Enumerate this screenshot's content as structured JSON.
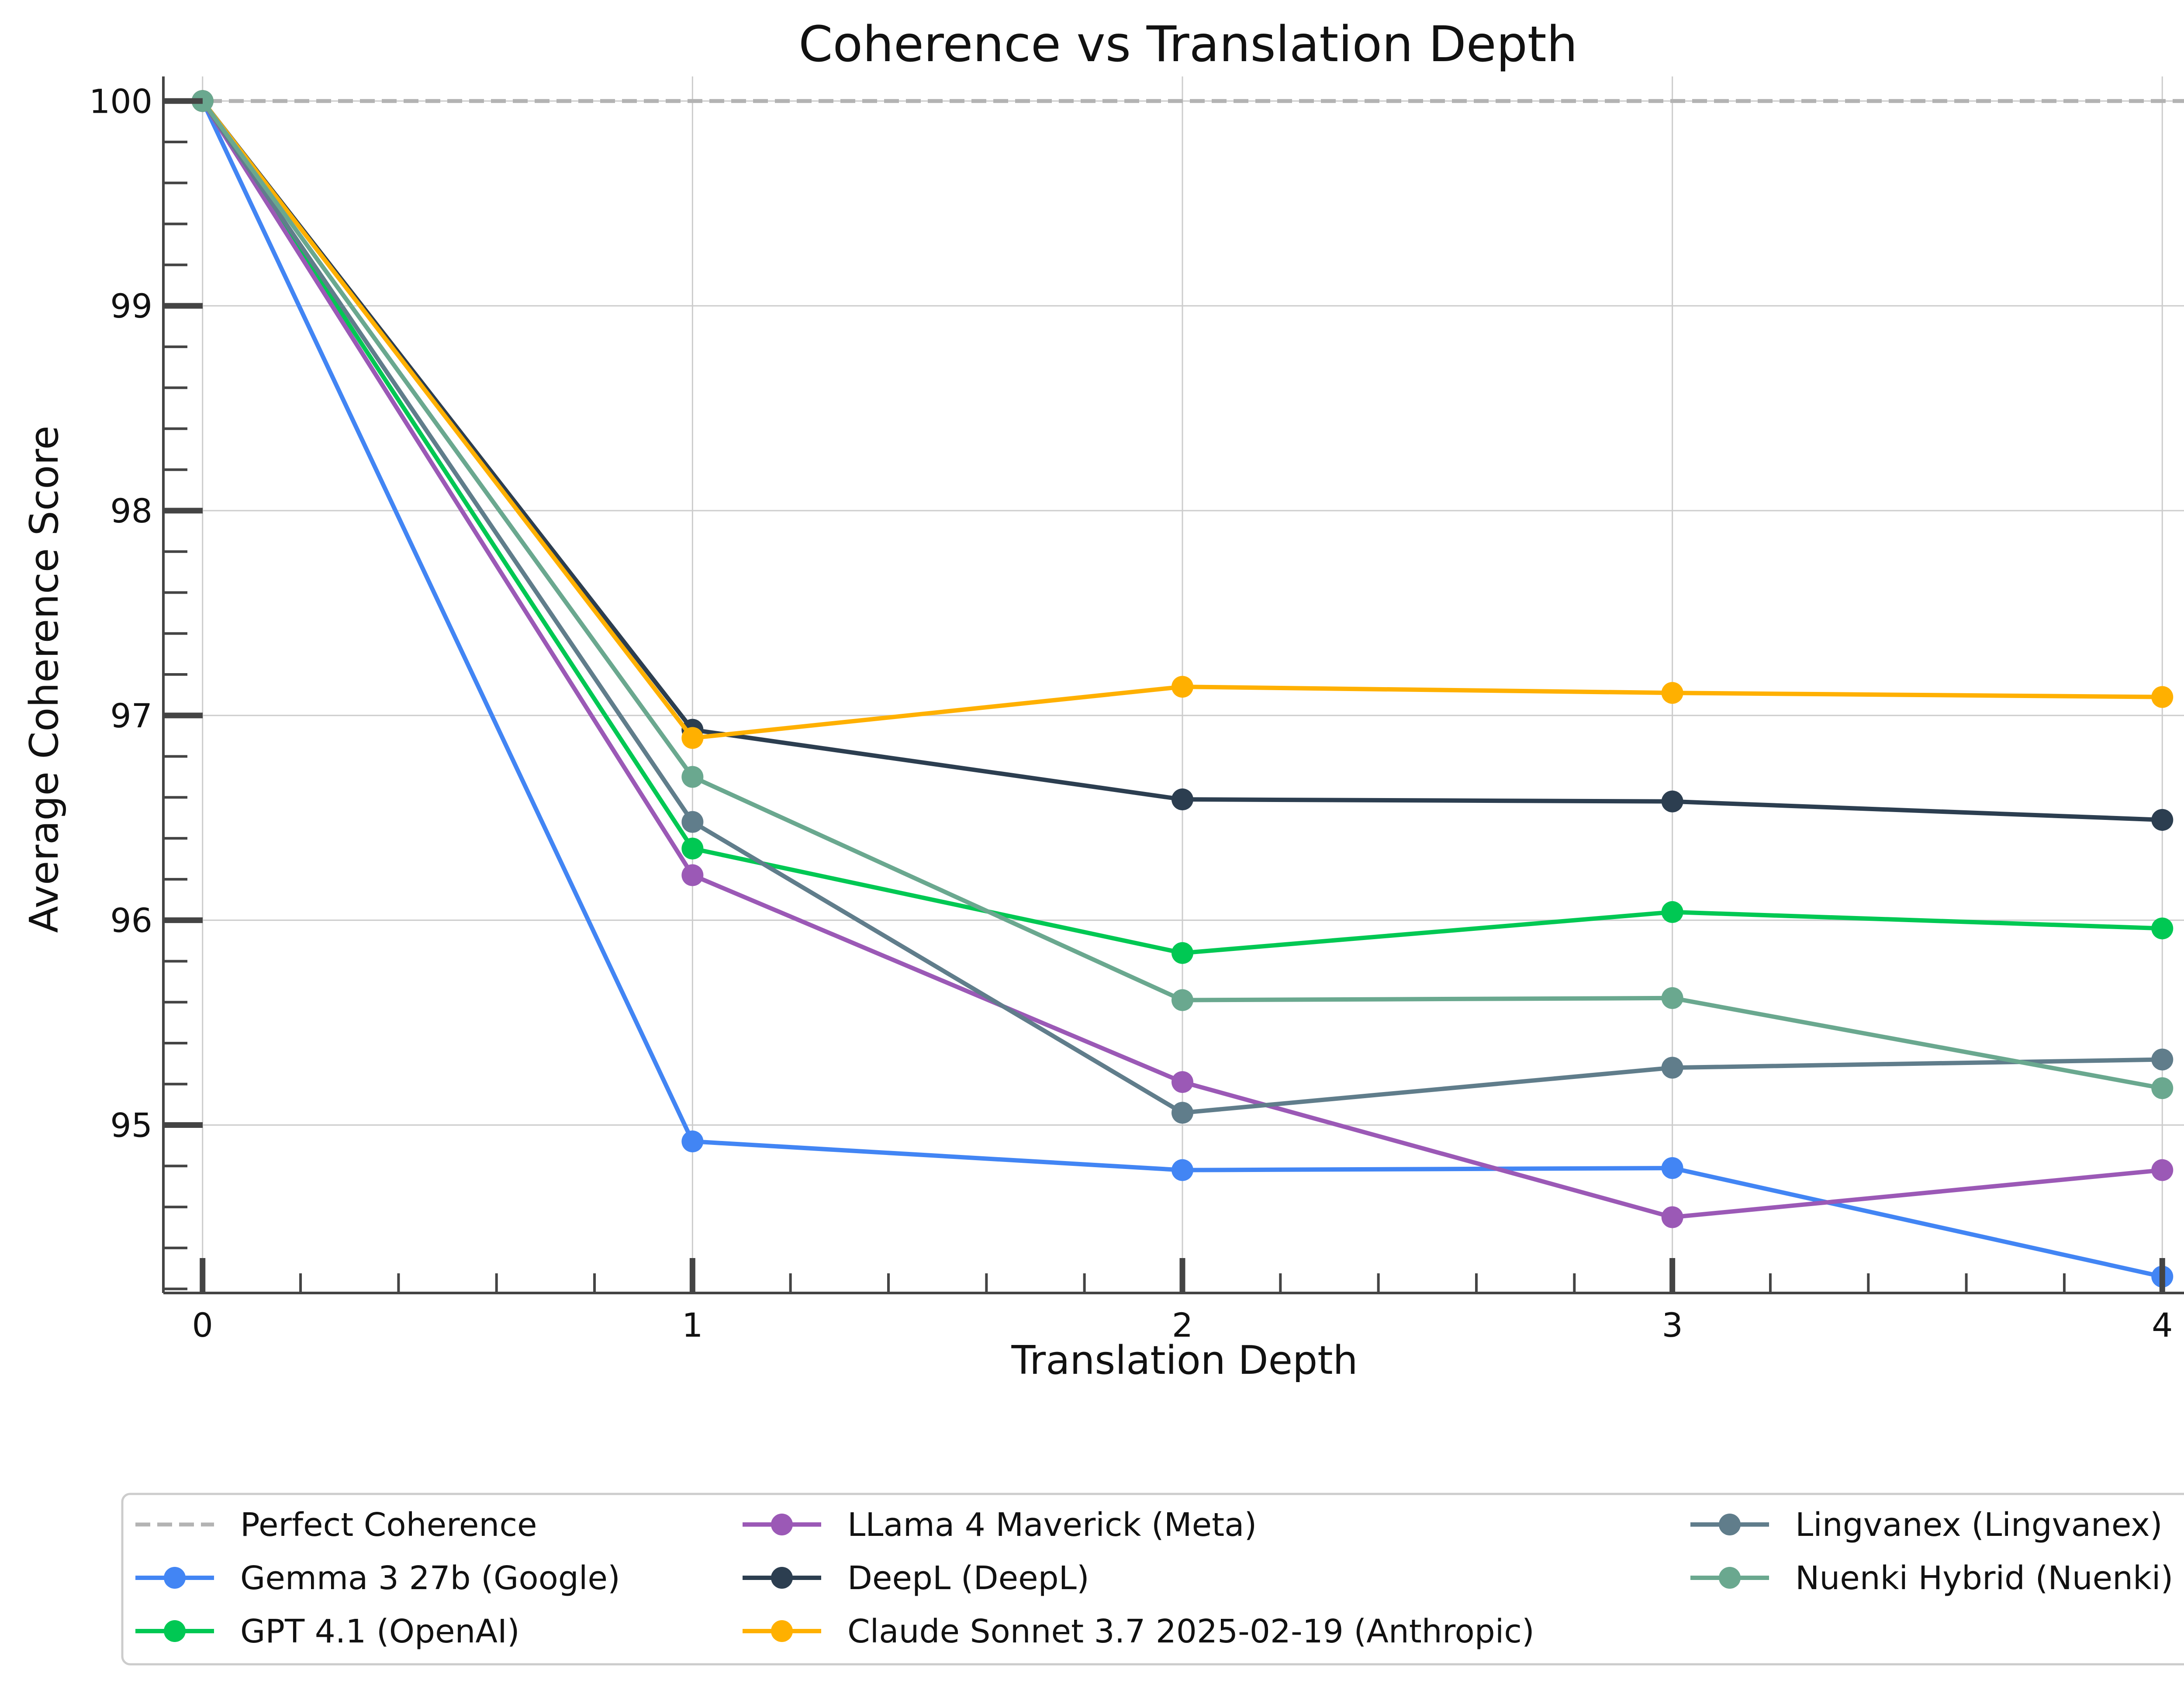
{
  "chart_data": {
    "type": "line",
    "title": "Coherence vs Translation Depth",
    "xlabel": "Translation Depth",
    "ylabel": "Average Coherence Score",
    "x": [
      0,
      1,
      2,
      3,
      4
    ],
    "x_tick_labels": [
      "0",
      "1",
      "2",
      "3",
      "4"
    ],
    "y_tick_labels": [
      "95",
      "96",
      "97",
      "98",
      "99",
      "100"
    ],
    "y_ticks": [
      95,
      96,
      97,
      98,
      99,
      100
    ],
    "xlim": [
      -0.08,
      4.08
    ],
    "ylim": [
      94.18,
      100.12
    ],
    "grid": true,
    "legend_position": "bottom-center",
    "reference_line": {
      "name": "Perfect Coherence",
      "value": 100,
      "color": "#b3b3b3",
      "style": "dashed"
    },
    "series": [
      {
        "name": "Gemma 3 27b (Google)",
        "color": "#4285f4",
        "values": [
          100,
          94.92,
          94.78,
          94.79,
          94.26
        ]
      },
      {
        "name": "GPT 4.1 (OpenAI)",
        "color": "#00c853",
        "values": [
          100,
          96.35,
          95.84,
          96.04,
          95.96
        ]
      },
      {
        "name": "LLama 4 Maverick (Meta)",
        "color": "#9b59b6",
        "values": [
          100,
          96.22,
          95.21,
          94.55,
          94.78
        ]
      },
      {
        "name": "DeepL (DeepL)",
        "color": "#2c3e50",
        "values": [
          100,
          96.93,
          96.59,
          96.58,
          96.49
        ]
      },
      {
        "name": "Claude Sonnet 3.7 2025-02-19 (Anthropic)",
        "color": "#ffb000",
        "values": [
          100,
          96.89,
          97.14,
          97.11,
          97.09
        ]
      },
      {
        "name": "Lingvanex (Lingvanex)",
        "color": "#607d8b",
        "values": [
          100,
          96.48,
          95.06,
          95.28,
          95.32
        ]
      },
      {
        "name": "Nuenki Hybrid (Nuenki)",
        "color": "#6aa88f",
        "values": [
          100,
          96.7,
          95.61,
          95.62,
          95.18
        ]
      }
    ],
    "legend_columns": [
      [
        "Perfect Coherence",
        "Gemma 3 27b (Google)",
        "GPT 4.1 (OpenAI)"
      ],
      [
        "LLama 4 Maverick (Meta)",
        "DeepL (DeepL)",
        "Claude Sonnet 3.7 2025-02-19 (Anthropic)"
      ],
      [
        "Lingvanex (Lingvanex)",
        "Nuenki Hybrid (Nuenki)"
      ]
    ]
  }
}
